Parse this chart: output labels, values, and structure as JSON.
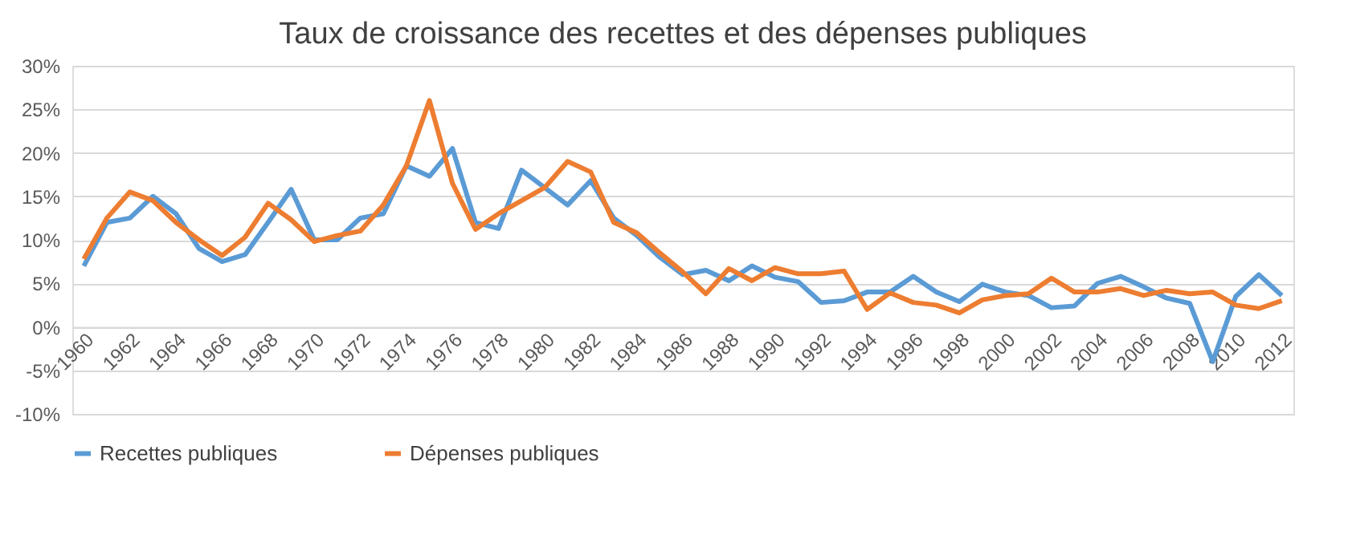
{
  "chart_data": {
    "type": "line",
    "title": "Taux de croissance des recettes et des dépenses publiques",
    "categories": [
      "1960",
      null,
      "1962",
      null,
      "1964",
      null,
      "1966",
      null,
      "1968",
      null,
      "1970",
      null,
      "1972",
      null,
      "1974",
      null,
      "1976",
      null,
      "1978",
      null,
      "1980",
      null,
      "1982",
      null,
      "1984",
      null,
      "1986",
      null,
      "1988",
      null,
      "1990",
      null,
      "1992",
      null,
      "1994",
      null,
      "1996",
      null,
      "1998",
      null,
      "2000",
      null,
      "2002",
      null,
      "2004",
      null,
      "2006",
      null,
      "2008",
      null,
      "2010",
      null,
      "2012"
    ],
    "series": [
      {
        "name": "Recettes publiques",
        "color": "#5b9bd5",
        "values": [
          7,
          12,
          12.5,
          15,
          13,
          9,
          7.5,
          8.3,
          12,
          15.8,
          10,
          10,
          12.5,
          13,
          18.5,
          17.3,
          20.5,
          12,
          11.3,
          18,
          16,
          14,
          16.8,
          12.5,
          10.5,
          8,
          6,
          6.5,
          5.3,
          7,
          5.7,
          5.2,
          2.8,
          3,
          4,
          4,
          5.8,
          4,
          2.9,
          4.9,
          4,
          3.6,
          2.2,
          2.4,
          5,
          5.8,
          4.6,
          3.3,
          2.7,
          -4,
          3.5,
          6,
          3.6
        ]
      },
      {
        "name": "Dépenses publiques",
        "color": "#ed7d31",
        "values": [
          7.8,
          12.5,
          15.5,
          14.5,
          12,
          10,
          8.2,
          10.3,
          14.2,
          12.3,
          9.8,
          10.5,
          11,
          14,
          18.5,
          26,
          16.5,
          11.2,
          13,
          14.5,
          16,
          19,
          17.8,
          12,
          10.8,
          8.5,
          6.3,
          3.8,
          6.7,
          5.3,
          6.8,
          6.1,
          6.1,
          6.4,
          2,
          3.9,
          2.8,
          2.5,
          1.6,
          3.1,
          3.6,
          3.8,
          5.6,
          4,
          4,
          4.4,
          3.6,
          4.2,
          3.8,
          4,
          2.5,
          2.1,
          3
        ]
      }
    ],
    "ylim": [
      -10,
      30
    ],
    "yticks": [
      {
        "value": -10,
        "label": "-10%"
      },
      {
        "value": -5,
        "label": "-5%"
      },
      {
        "value": 0,
        "label": "0%"
      },
      {
        "value": 5,
        "label": "5%"
      },
      {
        "value": 10,
        "label": "10%"
      },
      {
        "value": 15,
        "label": "15%"
      },
      {
        "value": 20,
        "label": "20%"
      },
      {
        "value": 25,
        "label": "25%"
      },
      {
        "value": 30,
        "label": "30%"
      }
    ],
    "grid": "y",
    "legend": "bottom",
    "marker": "none",
    "line_style": "solid"
  }
}
